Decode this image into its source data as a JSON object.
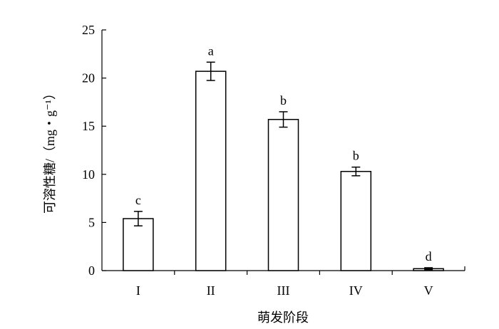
{
  "chart_data": {
    "type": "bar",
    "categories": [
      "I",
      "II",
      "III",
      "IV",
      "V"
    ],
    "values": [
      5.4,
      20.7,
      15.7,
      10.3,
      0.2
    ],
    "errors": [
      0.75,
      0.95,
      0.8,
      0.45,
      0.1
    ],
    "significance": [
      "c",
      "a",
      "b",
      "b",
      "d"
    ],
    "xlabel": "萌发阶段",
    "ylabel": "可溶性糖/（mg・g⁻¹）",
    "ylim": [
      0,
      25
    ],
    "yticks": [
      0,
      5,
      10,
      15,
      20,
      25
    ],
    "grid": false,
    "legend": "none",
    "bar_fill": "#ffffff",
    "bar_stroke": "#000000"
  }
}
